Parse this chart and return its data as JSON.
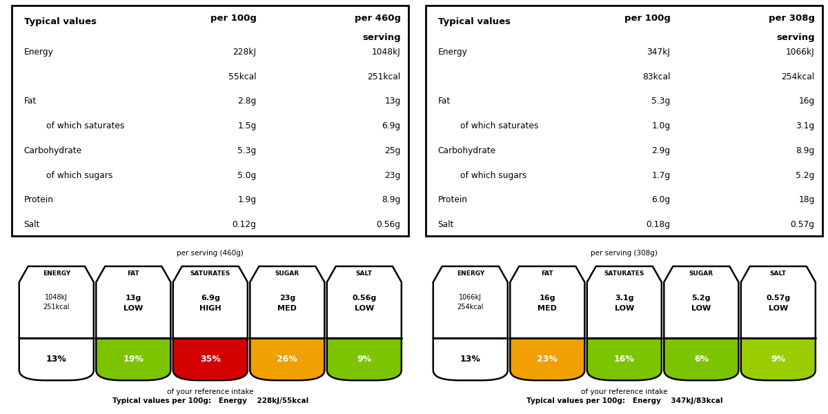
{
  "panels": [
    {
      "title": "Typical values",
      "col2": "per 100g",
      "col3_line1": "per 460g",
      "col3_line2": "serving",
      "rows": [
        {
          "label": "Energy",
          "indent": false,
          "v100": "228kJ",
          "vserv": "1048kJ"
        },
        {
          "label": "",
          "indent": false,
          "v100": "55kcal",
          "vserv": "251kcal"
        },
        {
          "label": "Fat",
          "indent": false,
          "v100": "2.8g",
          "vserv": "13g"
        },
        {
          "label": "of which saturates",
          "indent": true,
          "v100": "1.5g",
          "vserv": "6.9g"
        },
        {
          "label": "Carbohydrate",
          "indent": false,
          "v100": "5.3g",
          "vserv": "25g"
        },
        {
          "label": "of which sugars",
          "indent": true,
          "v100": "5.0g",
          "vserv": "23g"
        },
        {
          "label": "Protein",
          "indent": false,
          "v100": "1.9g",
          "vserv": "8.9g"
        },
        {
          "label": "Salt",
          "indent": false,
          "v100": "0.12g",
          "vserv": "0.56g"
        }
      ],
      "badge_title": "per serving (460g)",
      "badges": [
        {
          "name": "ENERGY",
          "line1": "1048kJ",
          "line2": "251kcal",
          "line3": "",
          "pct": "13%",
          "color": "#ffffff",
          "pct_text": "#000000"
        },
        {
          "name": "FAT",
          "line1": "13g",
          "line2": "LOW",
          "line3": "",
          "pct": "19%",
          "color": "#7dc400",
          "pct_text": "#ffffff"
        },
        {
          "name": "SATURATES",
          "line1": "6.9g",
          "line2": "HIGH",
          "line3": "",
          "pct": "35%",
          "color": "#d40000",
          "pct_text": "#ffffff"
        },
        {
          "name": "SUGAR",
          "line1": "23g",
          "line2": "MED",
          "line3": "",
          "pct": "26%",
          "color": "#f0a000",
          "pct_text": "#ffffff"
        },
        {
          "name": "SALT",
          "line1": "0.56g",
          "line2": "LOW",
          "line3": "",
          "pct": "9%",
          "color": "#7dc400",
          "pct_text": "#ffffff"
        }
      ],
      "footer1": "of your reference intake",
      "footer2": "Typical values per 100g:   Energy    228kJ/55kcal"
    },
    {
      "title": "Typical values",
      "col2": "per 100g",
      "col3_line1": "per 308g",
      "col3_line2": "serving",
      "rows": [
        {
          "label": "Energy",
          "indent": false,
          "v100": "347kJ",
          "vserv": "1066kJ"
        },
        {
          "label": "",
          "indent": false,
          "v100": "83kcal",
          "vserv": "254kcal"
        },
        {
          "label": "Fat",
          "indent": false,
          "v100": "5.3g",
          "vserv": "16g"
        },
        {
          "label": "of which saturates",
          "indent": true,
          "v100": "1.0g",
          "vserv": "3.1g"
        },
        {
          "label": "Carbohydrate",
          "indent": false,
          "v100": "2.9g",
          "vserv": "8.9g"
        },
        {
          "label": "of which sugars",
          "indent": true,
          "v100": "1.7g",
          "vserv": "5.2g"
        },
        {
          "label": "Protein",
          "indent": false,
          "v100": "6.0g",
          "vserv": "18g"
        },
        {
          "label": "Salt",
          "indent": false,
          "v100": "0.18g",
          "vserv": "0.57g"
        }
      ],
      "badge_title": "per serving (308g)",
      "badges": [
        {
          "name": "ENERGY",
          "line1": "1066kJ",
          "line2": "254kcal",
          "line3": "",
          "pct": "13%",
          "color": "#ffffff",
          "pct_text": "#000000"
        },
        {
          "name": "FAT",
          "line1": "16g",
          "line2": "MED",
          "line3": "",
          "pct": "23%",
          "color": "#f0a000",
          "pct_text": "#ffffff"
        },
        {
          "name": "SATURATES",
          "line1": "3.1g",
          "line2": "LOW",
          "line3": "",
          "pct": "16%",
          "color": "#7dc400",
          "pct_text": "#ffffff"
        },
        {
          "name": "SUGAR",
          "line1": "5.2g",
          "line2": "LOW",
          "line3": "",
          "pct": "6%",
          "color": "#7dc400",
          "pct_text": "#ffffff"
        },
        {
          "name": "SALT",
          "line1": "0.57g",
          "line2": "LOW",
          "line3": "",
          "pct": "9%",
          "color": "#9acd00",
          "pct_text": "#ffffff"
        }
      ],
      "footer1": "of your reference intake",
      "footer2": "Typical values per 100g:   Energy    347kJ/83kcal"
    }
  ]
}
